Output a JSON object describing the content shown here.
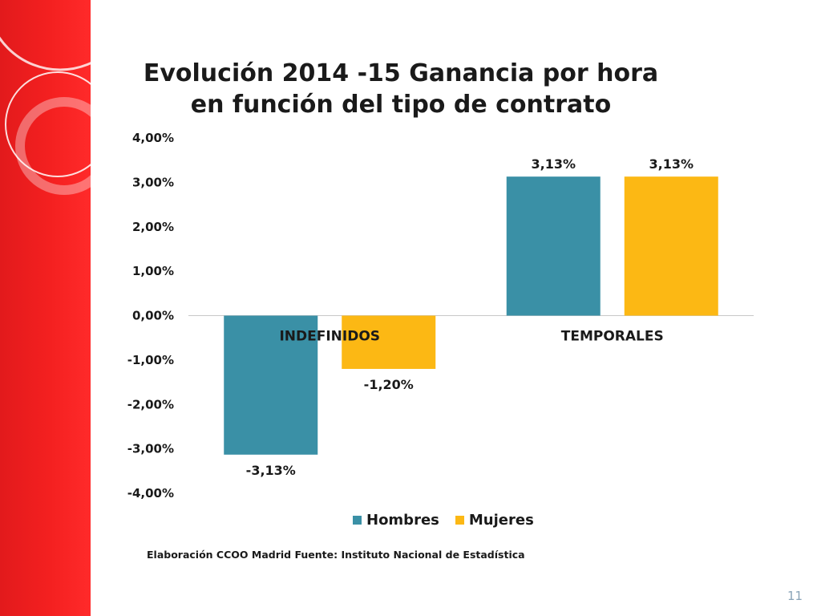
{
  "slide": {
    "number": "11",
    "source_note": "Elaboración CCOO Madrid Fuente: Instituto Nacional de Estadística"
  },
  "colors": {
    "band": "#f02020",
    "hombres": "#3a90a6",
    "mujeres": "#fcb814"
  },
  "chart_data": {
    "type": "bar",
    "title_lines": [
      "Evolución 2014 -15  Ganancia por hora",
      "en función del tipo de contrato"
    ],
    "categories": [
      "INDEFINIDOS",
      "TEMPORALES"
    ],
    "series": [
      {
        "name": "Hombres",
        "values": [
          -3.13,
          3.13
        ],
        "labels": [
          "-3,13%",
          "3,13%"
        ]
      },
      {
        "name": "Mujeres",
        "values": [
          -1.2,
          3.13
        ],
        "labels": [
          "-1,20%",
          "3,13%"
        ]
      }
    ],
    "ylim": [
      -4,
      4
    ],
    "yticks": [
      4,
      3,
      2,
      1,
      0,
      -1,
      -2,
      -3,
      -4
    ],
    "ytick_labels": [
      "4,00%",
      "3,00%",
      "2,00%",
      "1,00%",
      "0,00%",
      "-1,00%",
      "-2,00%",
      "-3,00%",
      "-4,00%"
    ],
    "xlabel": "",
    "ylabel": "",
    "grid": false,
    "legend_position": "bottom"
  }
}
